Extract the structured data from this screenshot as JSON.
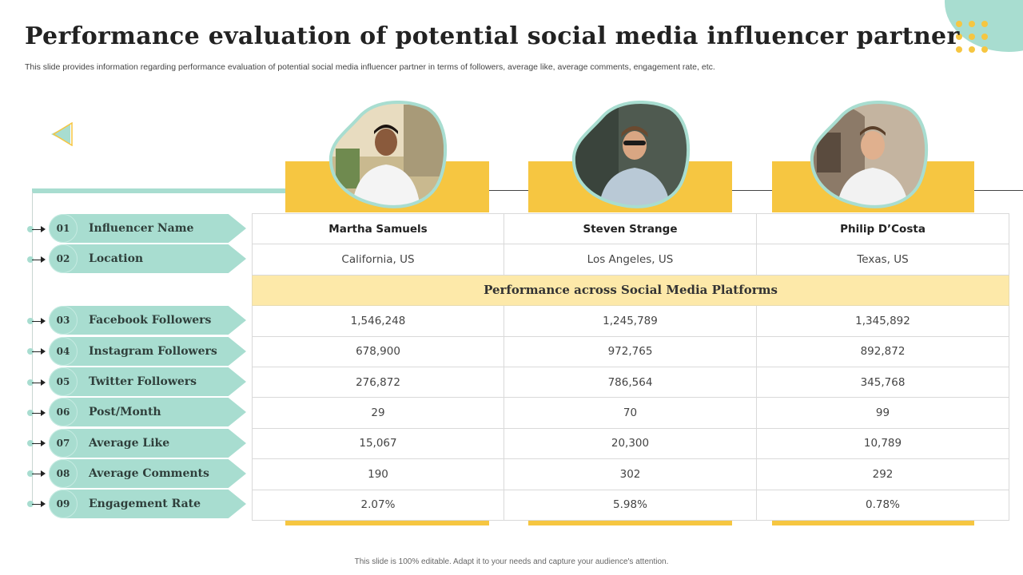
{
  "header": {
    "title": "Performance evaluation of potential social media influencer partner",
    "subtitle": "This slide provides information regarding performance evaluation of potential social media influencer partner in terms of followers, average like, average comments, engagement rate, etc."
  },
  "colors": {
    "teal": "#a8ddd0",
    "yellow": "#f6c641",
    "section_bg": "#fde9a9"
  },
  "icons": {
    "back": "triangle-left-icon",
    "avatar": "person-photo"
  },
  "rows": [
    {
      "num": "01",
      "label": "Influencer Name"
    },
    {
      "num": "02",
      "label": "Location"
    },
    {
      "num": "03",
      "label": "Facebook Followers"
    },
    {
      "num": "04",
      "label": "Instagram Followers"
    },
    {
      "num": "05",
      "label": "Twitter Followers"
    },
    {
      "num": "06",
      "label": "Post/Month"
    },
    {
      "num": "07",
      "label": "Average Like"
    },
    {
      "num": "08",
      "label": "Average Comments"
    },
    {
      "num": "09",
      "label": "Engagement Rate"
    }
  ],
  "section_title": "Performance across Social Media Platforms",
  "influencers": [
    {
      "name": "Martha Samuels",
      "location": "California, US",
      "facebook": "1,546,248",
      "instagram": "678,900",
      "twitter": "276,872",
      "posts": "29",
      "likes": "15,067",
      "comments": "190",
      "engagement": "2.07%"
    },
    {
      "name": "Steven Strange",
      "location": "Los Angeles, US",
      "facebook": "1,245,789",
      "instagram": "972,765",
      "twitter": "786,564",
      "posts": "70",
      "likes": "20,300",
      "comments": "302",
      "engagement": "5.98%"
    },
    {
      "name": "Philip D’Costa",
      "location": "Texas, US",
      "facebook": "1,345,892",
      "instagram": "892,872",
      "twitter": "345,768",
      "posts": "99",
      "likes": "10,789",
      "comments": "292",
      "engagement": "0.78%"
    }
  ],
  "footer": "This slide is 100% editable. Adapt it to your needs and capture your audience's attention."
}
